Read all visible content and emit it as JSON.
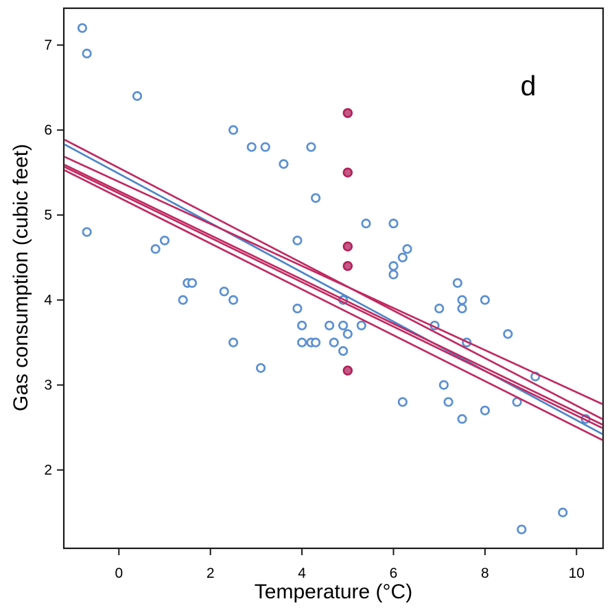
{
  "chart_data": {
    "type": "scatter",
    "title": "",
    "panel_label": "d",
    "xlabel": "Temperature (°C)",
    "ylabel": "Gas consumption (cubic feet)",
    "xlim": [
      -1.17,
      10.55
    ],
    "ylim": [
      1.08,
      7.43
    ],
    "x_ticks": [
      0,
      2,
      4,
      6,
      8,
      10
    ],
    "y_ticks": [
      2,
      3,
      4,
      5,
      6,
      7
    ],
    "grid": false,
    "legend": "none",
    "colors": {
      "observed_stroke": "#5b90d2",
      "observed_fill": "none",
      "outlier_fill": "#c65887",
      "outlier_stroke": "#b32058",
      "fit_original": "#4b85c9",
      "fit_refit": "#c12960",
      "frame": "#1a1a1a",
      "text": "#000000"
    },
    "series": [
      {
        "name": "observed",
        "marker": "open-circle",
        "points": [
          [
            -0.8,
            7.2
          ],
          [
            -0.7,
            6.9
          ],
          [
            -0.7,
            4.8
          ],
          [
            0.4,
            6.4
          ],
          [
            0.8,
            4.6
          ],
          [
            1.0,
            4.7
          ],
          [
            1.4,
            4.0
          ],
          [
            1.5,
            4.2
          ],
          [
            1.6,
            4.2
          ],
          [
            2.3,
            4.1
          ],
          [
            2.5,
            6.0
          ],
          [
            2.5,
            4.0
          ],
          [
            2.5,
            3.5
          ],
          [
            2.9,
            5.8
          ],
          [
            3.1,
            3.2
          ],
          [
            3.2,
            5.8
          ],
          [
            3.6,
            5.6
          ],
          [
            3.9,
            4.7
          ],
          [
            3.9,
            3.9
          ],
          [
            4.0,
            3.5
          ],
          [
            4.0,
            3.7
          ],
          [
            4.2,
            5.8
          ],
          [
            4.2,
            3.5
          ],
          [
            4.3,
            5.2
          ],
          [
            4.3,
            3.5
          ],
          [
            4.6,
            3.7
          ],
          [
            4.7,
            3.5
          ],
          [
            4.9,
            3.4
          ],
          [
            4.9,
            3.7
          ],
          [
            4.9,
            4.0
          ],
          [
            5.0,
            3.6
          ],
          [
            5.3,
            3.7
          ],
          [
            5.4,
            4.9
          ],
          [
            6.0,
            4.9
          ],
          [
            6.0,
            4.3
          ],
          [
            6.0,
            4.4
          ],
          [
            6.2,
            4.5
          ],
          [
            6.2,
            2.8
          ],
          [
            6.3,
            4.6
          ],
          [
            6.9,
            3.7
          ],
          [
            7.0,
            3.9
          ],
          [
            7.1,
            3.0
          ],
          [
            7.2,
            2.8
          ],
          [
            7.4,
            4.2
          ],
          [
            7.5,
            4.0
          ],
          [
            7.5,
            3.9
          ],
          [
            7.5,
            2.6
          ],
          [
            7.6,
            3.5
          ],
          [
            8.0,
            4.0
          ],
          [
            8.0,
            2.7
          ],
          [
            8.5,
            3.6
          ],
          [
            8.7,
            2.8
          ],
          [
            8.8,
            1.3
          ],
          [
            9.1,
            3.1
          ],
          [
            9.7,
            1.5
          ],
          [
            10.2,
            2.6
          ]
        ]
      },
      {
        "name": "added-outliers",
        "marker": "filled-circle",
        "points": [
          [
            5.0,
            6.2
          ],
          [
            5.0,
            5.5
          ],
          [
            5.0,
            4.63
          ],
          [
            5.0,
            4.4
          ],
          [
            5.0,
            3.17
          ]
        ]
      }
    ],
    "lines": [
      {
        "name": "fit-original",
        "style": "blue",
        "intercept": 5.486,
        "slope": -0.29
      },
      {
        "name": "fit-with-outlier-1",
        "style": "crimson",
        "intercept": 5.554,
        "slope": -0.2797
      },
      {
        "name": "fit-with-outlier-2",
        "style": "crimson",
        "intercept": 5.391,
        "slope": -0.2476
      },
      {
        "name": "fit-with-outlier-3",
        "style": "crimson",
        "intercept": 5.282,
        "slope": -0.2601
      },
      {
        "name": "fit-with-outlier-4",
        "style": "crimson",
        "intercept": 5.255,
        "slope": -0.2614
      },
      {
        "name": "fit-with-outlier-5",
        "style": "crimson",
        "intercept": 5.206,
        "slope": -0.2701
      }
    ]
  }
}
